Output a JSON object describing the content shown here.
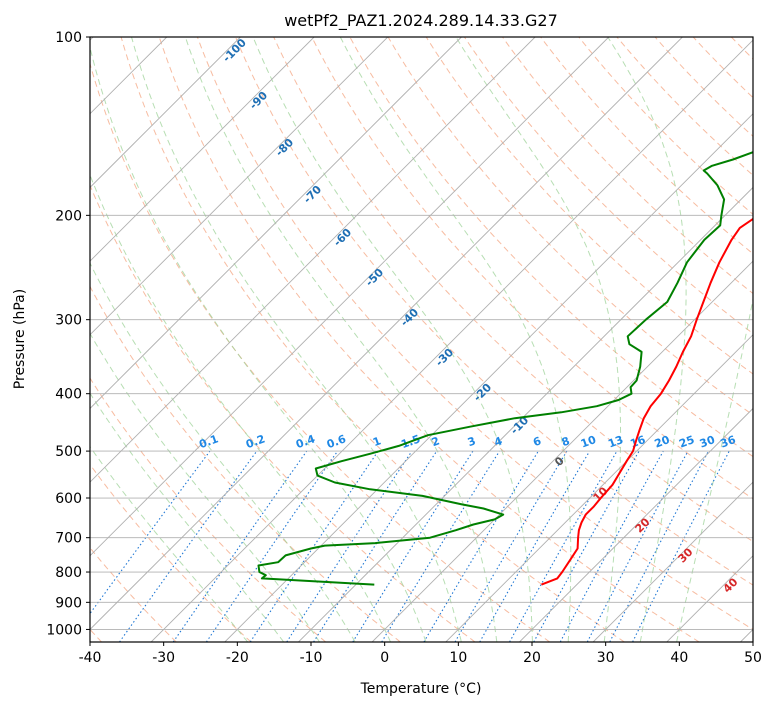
{
  "chart_data": {
    "type": "line",
    "chart_kind": "skew-T log-P diagram",
    "title": "wetPf2_PAZ1.2024.289.14.33.G27",
    "xlabel": "Temperature (°C)",
    "ylabel": "Pressure (hPa)",
    "xlim": [
      -40,
      50
    ],
    "ylim": [
      1050,
      100
    ],
    "y_scale": "log",
    "x_ticks": [
      -40,
      -30,
      -20,
      -10,
      0,
      10,
      20,
      30,
      40,
      50
    ],
    "y_ticks": [
      100,
      200,
      300,
      400,
      500,
      600,
      700,
      800,
      900,
      1000
    ],
    "grid": true,
    "series": [
      {
        "role": "temperature",
        "color": "#ff0000",
        "points": [
          [
            15.2,
            840
          ],
          [
            16.5,
            820
          ],
          [
            16.3,
            800
          ],
          [
            15.7,
            760
          ],
          [
            15.2,
            730
          ],
          [
            13.8,
            700
          ],
          [
            12.9,
            680
          ],
          [
            12.2,
            660
          ],
          [
            11.7,
            640
          ],
          [
            11.7,
            620
          ],
          [
            11.5,
            600
          ],
          [
            11.3,
            570
          ],
          [
            10.8,
            550
          ],
          [
            10.0,
            520
          ],
          [
            9.5,
            500
          ],
          [
            8.5,
            480
          ],
          [
            7.5,
            460
          ],
          [
            6.5,
            440
          ],
          [
            5.8,
            420
          ],
          [
            5.5,
            400
          ],
          [
            4.8,
            380
          ],
          [
            3.9,
            360
          ],
          [
            2.8,
            340
          ],
          [
            1.8,
            320
          ],
          [
            0.3,
            300
          ],
          [
            -1.2,
            280
          ],
          [
            -2.8,
            260
          ],
          [
            -4.4,
            240
          ],
          [
            -5.8,
            220
          ],
          [
            -6.3,
            210
          ],
          [
            -5.5,
            200
          ],
          [
            -3.3,
            190
          ],
          [
            -0.3,
            180
          ],
          [
            2.2,
            176
          ],
          [
            4.5,
            172
          ],
          [
            6.2,
            167
          ],
          [
            7.2,
            160
          ],
          [
            7.5,
            152
          ],
          [
            7.5,
            145
          ],
          [
            8.5,
            140
          ],
          [
            10.5,
            133
          ],
          [
            12.3,
            125
          ],
          [
            14.0,
            118
          ],
          [
            16.2,
            110
          ],
          [
            18.5,
            104
          ],
          [
            20.0,
            100
          ]
        ]
      },
      {
        "role": "dewpoint",
        "color": "#008000",
        "points": [
          [
            -7.5,
            840
          ],
          [
            -23.6,
            820
          ],
          [
            -23.5,
            810
          ],
          [
            -24.8,
            800
          ],
          [
            -25.8,
            780
          ],
          [
            -23.6,
            770
          ],
          [
            -23.5,
            750
          ],
          [
            -21.0,
            730
          ],
          [
            -19.5,
            722
          ],
          [
            -13.0,
            715
          ],
          [
            -6.3,
            700
          ],
          [
            -3.8,
            680
          ],
          [
            -2.2,
            665
          ],
          [
            0.0,
            652
          ],
          [
            0.5,
            640
          ],
          [
            -3.0,
            625
          ],
          [
            -6.5,
            615
          ],
          [
            -13.0,
            595
          ],
          [
            -21.0,
            580
          ],
          [
            -26.7,
            565
          ],
          [
            -30.0,
            550
          ],
          [
            -31.2,
            535
          ],
          [
            -28.7,
            520
          ],
          [
            -25.8,
            505
          ],
          [
            -23.0,
            490
          ],
          [
            -20.5,
            470
          ],
          [
            -16.0,
            455
          ],
          [
            -11.0,
            440
          ],
          [
            -5.5,
            430
          ],
          [
            -1.5,
            420
          ],
          [
            0.6,
            410
          ],
          [
            1.5,
            400
          ],
          [
            0.5,
            390
          ],
          [
            0.4,
            380
          ],
          [
            -1.0,
            360
          ],
          [
            -2.8,
            340
          ],
          [
            -5.5,
            330
          ],
          [
            -6.8,
            320
          ],
          [
            -6.6,
            300
          ],
          [
            -6.1,
            280
          ],
          [
            -7.3,
            260
          ],
          [
            -8.8,
            240
          ],
          [
            -9.5,
            220
          ],
          [
            -9.3,
            208
          ],
          [
            -10.5,
            200
          ],
          [
            -12.3,
            188
          ],
          [
            -15.1,
            178
          ],
          [
            -18.1,
            170
          ],
          [
            -19.0,
            168
          ],
          [
            -18.5,
            165
          ],
          [
            -16.5,
            161
          ],
          [
            -14.2,
            155
          ],
          [
            -13.0,
            147
          ],
          [
            -13.0,
            140
          ],
          [
            -12.5,
            133
          ],
          [
            -10.2,
            127
          ],
          [
            -9.2,
            120
          ],
          [
            -8.0,
            112
          ],
          [
            -7.2,
            105
          ],
          [
            -6.5,
            100
          ]
        ]
      }
    ],
    "dry_adiabat_labels": [
      "-100",
      "-90",
      "-80",
      "-70",
      "-60",
      "-50",
      "-40",
      "-30",
      "-20",
      "-10"
    ],
    "moist_adiabat_labels": [
      "0",
      "10",
      "20",
      "30",
      "40"
    ],
    "mixing_ratio_labels": [
      "0.1",
      "0.2",
      "0.4",
      "0.6",
      "1",
      "1.5",
      "2",
      "3",
      "4",
      "6",
      "8",
      "10",
      "13",
      "16",
      "20",
      "25",
      "30",
      "36"
    ],
    "colors": {
      "isotherm": "#b0b0b0",
      "isobar": "#b0b0b0",
      "dry_adiabat": "#f4a582",
      "moist_adiabat": "#9fd39a",
      "mixing_ratio": "#1f77d4",
      "dry_label": "#1f6fb4",
      "moist_label": "#d62728",
      "mixing_label": "#1f88e5",
      "temperature": "#ff0000",
      "dewpoint": "#008000"
    }
  }
}
